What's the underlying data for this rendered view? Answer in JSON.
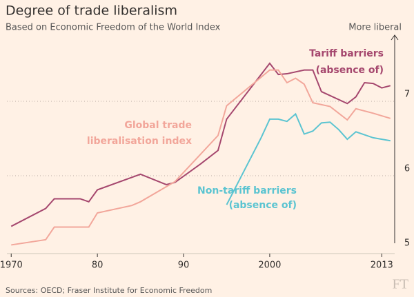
{
  "chart_data": {
    "type": "line",
    "title": "Degree of trade liberalism",
    "subtitle": "Based on Economic Freedom of the World Index",
    "y_axis_label": "More liberal",
    "source": "Sources: OECD; Fraser Institute for Economic Freedom",
    "logo": "FT",
    "xlim": [
      1969.5,
      2014.5
    ],
    "xticks": [
      1970,
      {
        "value": 1980,
        "label": "80"
      },
      {
        "value": 1990,
        "label": "90"
      },
      2000,
      2013
    ],
    "ylim": [
      5,
      8
    ],
    "yticks": [
      5,
      6,
      7
    ],
    "grid": true,
    "series": [
      {
        "label_lines": [
          "Tariff barriers",
          "(absence of)"
        ],
        "color": "#a5476e",
        "x": [
          1970,
          1974,
          1975,
          1978,
          1979,
          1980,
          1985,
          1988,
          1989,
          1992,
          1994,
          1995,
          2000,
          2001,
          2002,
          2004,
          2005,
          2006,
          2009,
          2010,
          2011,
          2012,
          2013,
          2014
        ],
        "values": [
          5.32,
          5.56,
          5.69,
          5.69,
          5.65,
          5.81,
          6.02,
          5.88,
          5.91,
          6.16,
          6.34,
          6.76,
          7.51,
          7.36,
          7.37,
          7.42,
          7.42,
          7.13,
          6.97,
          7.06,
          7.25,
          7.24,
          7.18,
          7.21
        ]
      },
      {
        "label_lines": [
          "Global trade",
          "liberalisation index"
        ],
        "color": "#f2a69a",
        "x": [
          1970,
          1974,
          1975,
          1979,
          1980,
          1984,
          1985,
          1989,
          1994,
          1995,
          2000,
          2001,
          2002,
          2003,
          2004,
          2005,
          2007,
          2009,
          2010,
          2012,
          2014
        ],
        "values": [
          5.07,
          5.14,
          5.31,
          5.31,
          5.5,
          5.6,
          5.65,
          5.92,
          6.54,
          6.94,
          7.42,
          7.42,
          7.25,
          7.31,
          7.23,
          6.98,
          6.93,
          6.75,
          6.9,
          6.84,
          6.77
        ]
      },
      {
        "label_lines": [
          "Non-tariff barriers",
          "(absence of)"
        ],
        "color": "#5bc4d1",
        "x": [
          1995,
          1999,
          2000,
          2001,
          2002,
          2003,
          2004,
          2005,
          2006,
          2007,
          2008,
          2009,
          2010,
          2012,
          2014
        ],
        "values": [
          5.61,
          6.51,
          6.76,
          6.76,
          6.73,
          6.83,
          6.56,
          6.6,
          6.71,
          6.72,
          6.62,
          6.49,
          6.59,
          6.51,
          6.47
        ]
      }
    ]
  }
}
